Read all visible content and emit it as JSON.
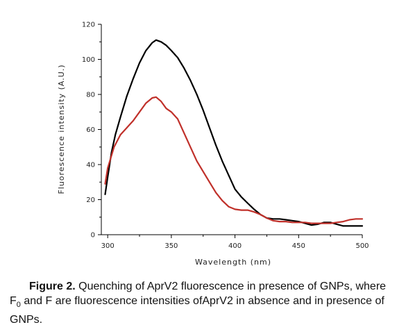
{
  "chart_data": {
    "type": "line",
    "xlabel": "Wavelength (nm)",
    "ylabel": "Fluorescence intensity (A.U.)",
    "xlim": [
      295,
      500
    ],
    "ylim": [
      0,
      120
    ],
    "xticks": [
      300,
      350,
      400,
      450,
      500
    ],
    "yticks": [
      0,
      20,
      40,
      60,
      80,
      100,
      120
    ],
    "grid": false,
    "series": [
      {
        "color": "#000000",
        "x": [
          298,
          300,
          303,
          306,
          310,
          315,
          320,
          325,
          330,
          335,
          338,
          342,
          346,
          350,
          355,
          360,
          365,
          370,
          375,
          380,
          385,
          390,
          395,
          400,
          405,
          410,
          415,
          420,
          425,
          430,
          435,
          440,
          445,
          450,
          455,
          460,
          465,
          470,
          475,
          480,
          485,
          490,
          495,
          500
        ],
        "y": [
          23,
          33,
          47,
          57,
          67,
          79,
          89,
          98,
          105,
          109.5,
          111,
          110,
          108,
          105,
          101,
          95,
          88,
          80,
          71,
          61,
          51,
          42,
          34,
          26,
          21.5,
          18,
          14.5,
          11.5,
          9.5,
          9,
          9,
          8.5,
          8,
          7.5,
          6.5,
          5.5,
          6,
          7,
          7,
          6,
          5,
          5,
          5,
          5
        ]
      },
      {
        "color": "#c0302a",
        "x": [
          298,
          300,
          305,
          310,
          315,
          320,
          325,
          330,
          335,
          338,
          342,
          346,
          350,
          355,
          360,
          365,
          370,
          375,
          380,
          385,
          390,
          395,
          400,
          405,
          410,
          415,
          420,
          425,
          430,
          435,
          440,
          445,
          450,
          455,
          460,
          465,
          470,
          475,
          480,
          485,
          490,
          495,
          500
        ],
        "y": [
          29,
          38,
          50,
          57,
          61,
          65,
          70,
          75,
          78,
          78.5,
          76,
          72,
          70,
          66,
          58,
          50,
          42,
          36,
          30,
          24,
          19.5,
          16,
          14.5,
          14,
          14,
          13,
          11.5,
          9.5,
          8,
          7.5,
          7.5,
          7,
          7,
          7,
          6.5,
          6.5,
          6.5,
          6.5,
          7,
          7.5,
          8.5,
          9,
          9
        ]
      }
    ]
  },
  "caption": {
    "label": "Figure 2.",
    "text_1": " Quenching of AprV2 fluorescence in presence of GNPs, where F",
    "sub": "0",
    "text_2": " and F are fluorescence intensities ofAprV2 in absence and in presence of GNPs."
  }
}
